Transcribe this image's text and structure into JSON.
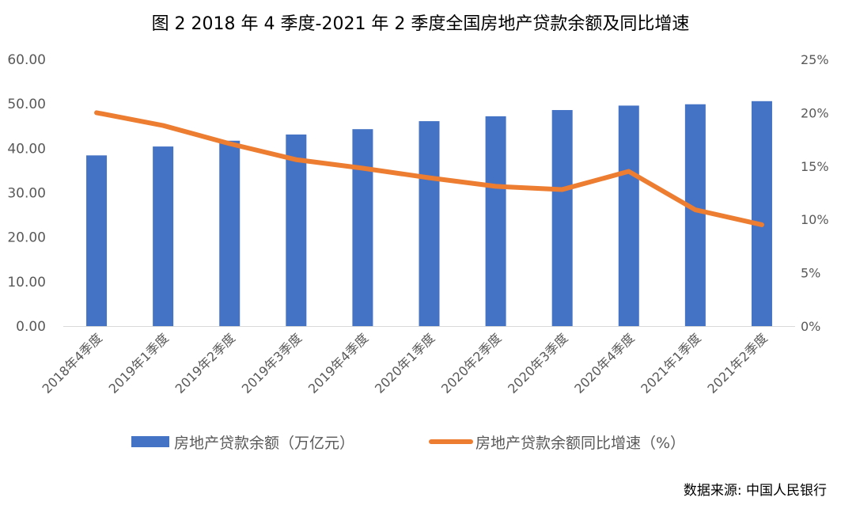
{
  "chart_data": {
    "type": "bar",
    "title": "图 2 2018 年 4 季度-2021 年 2 季度全国房地产贷款余额及同比增速",
    "categories": [
      "2018年4季度",
      "2019年1季度",
      "2019年2季度",
      "2019年3季度",
      "2019年4季度",
      "2020年1季度",
      "2020年2季度",
      "2020年3季度",
      "2020年4季度",
      "2021年1季度",
      "2021年2季度"
    ],
    "series": [
      {
        "name": "房地产贷款余额（万亿元）",
        "type": "bar",
        "axis": "left",
        "color": "#4472C4",
        "values": [
          38.4,
          40.4,
          41.7,
          43.1,
          44.3,
          46.1,
          47.2,
          48.6,
          49.6,
          49.9,
          50.6
        ]
      },
      {
        "name": "房地产贷款余额同比增速（%）",
        "type": "line",
        "axis": "right",
        "color": "#ED7D31",
        "values": [
          20.0,
          18.8,
          17.1,
          15.6,
          14.8,
          13.9,
          13.1,
          12.8,
          14.5,
          10.9,
          9.5
        ]
      }
    ],
    "ylim_left": [
      0,
      60
    ],
    "yticks_left": [
      "0.00",
      "10.00",
      "20.00",
      "30.00",
      "40.00",
      "50.00",
      "60.00"
    ],
    "ylim_right": [
      0,
      25
    ],
    "yticks_right": [
      "0%",
      "5%",
      "10%",
      "15%",
      "20%",
      "25%"
    ],
    "grid": false,
    "legend_position": "bottom"
  },
  "source": "数据来源: 中国人民银行"
}
